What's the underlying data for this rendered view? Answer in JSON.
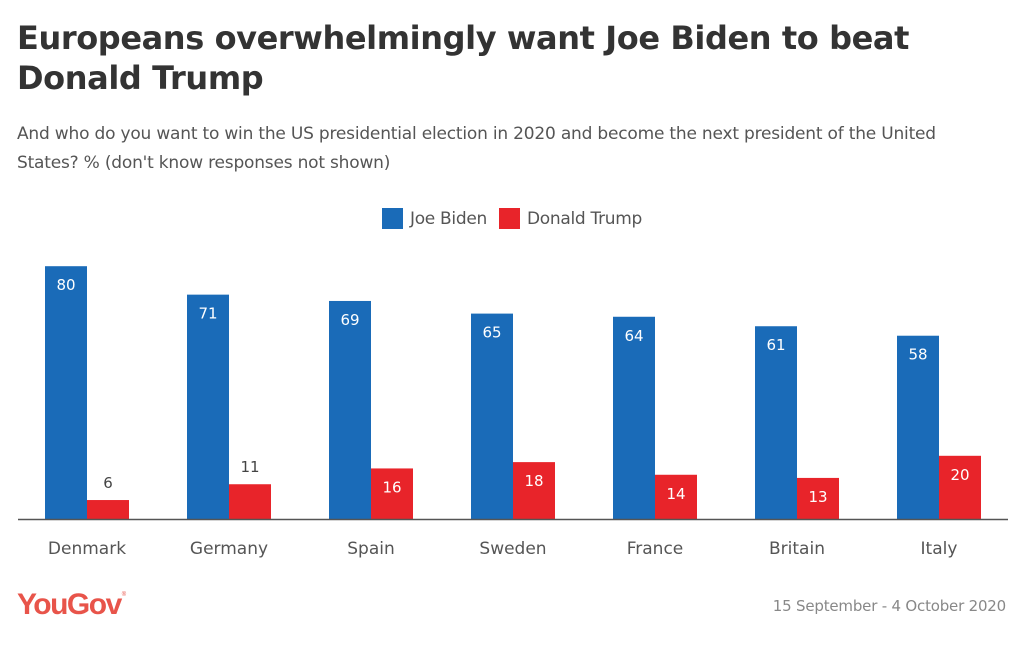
{
  "header": {
    "title": "Europeans overwhelmingly want Joe Biden to beat Donald Trump",
    "subtitle": "And who do you want to win the US presidential election in 2020 and become the next president of the United States? % (don't know responses not shown)"
  },
  "footer": {
    "logo": "YouGov",
    "logo_mark": "®",
    "date_range": "15 September - 4 October 2020"
  },
  "colors": {
    "biden": "#1a6bb8",
    "trump": "#e8242a",
    "logo": "#e8544a",
    "axis": "#555555"
  },
  "chart_data": {
    "type": "bar",
    "title": "Europeans overwhelmingly want Joe Biden to beat Donald Trump",
    "subtitle": "And who do you want to win the US presidential election in 2020 and become the next president of the United States? % (don't know responses not shown)",
    "xlabel": "",
    "ylabel": "",
    "ylim": [
      0,
      80
    ],
    "grid": false,
    "legend_position": "top-center",
    "categories": [
      "Denmark",
      "Germany",
      "Spain",
      "Sweden",
      "France",
      "Britain",
      "Italy"
    ],
    "series": [
      {
        "name": "Joe Biden",
        "color": "#1a6bb8",
        "values": [
          80,
          71,
          69,
          65,
          64,
          61,
          58
        ]
      },
      {
        "name": "Donald Trump",
        "color": "#e8242a",
        "values": [
          6,
          11,
          16,
          18,
          14,
          13,
          20
        ]
      }
    ]
  }
}
